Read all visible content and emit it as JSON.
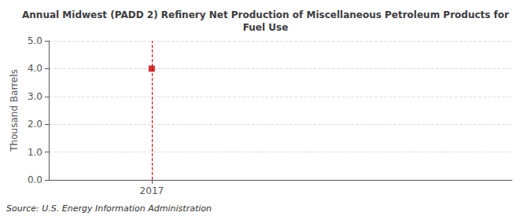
{
  "chart_data": {
    "type": "scatter",
    "title": "Annual Midwest (PADD 2) Refinery Net Production of Miscellaneous Petroleum Products for\nFuel Use",
    "ylabel": "Thousand Barrels",
    "source": "Source: U.S. Energy Information Administration",
    "x": [
      2017
    ],
    "values": [
      4.0
    ],
    "color": "#cc0000",
    "marker": "square",
    "xlim": [
      2016.6,
      2018.4
    ],
    "xticks": [
      2017
    ],
    "ylim": [
      0.0,
      5.0
    ],
    "yticks": [
      {
        "value": 0.0,
        "label": "0.0"
      },
      {
        "value": 1.0,
        "label": "1.0"
      },
      {
        "value": 2.0,
        "label": "2.0"
      },
      {
        "value": 3.0,
        "label": "3.0"
      },
      {
        "value": 4.0,
        "label": "4.0"
      },
      {
        "value": 5.0,
        "label": "5.0"
      }
    ],
    "grid": true
  }
}
